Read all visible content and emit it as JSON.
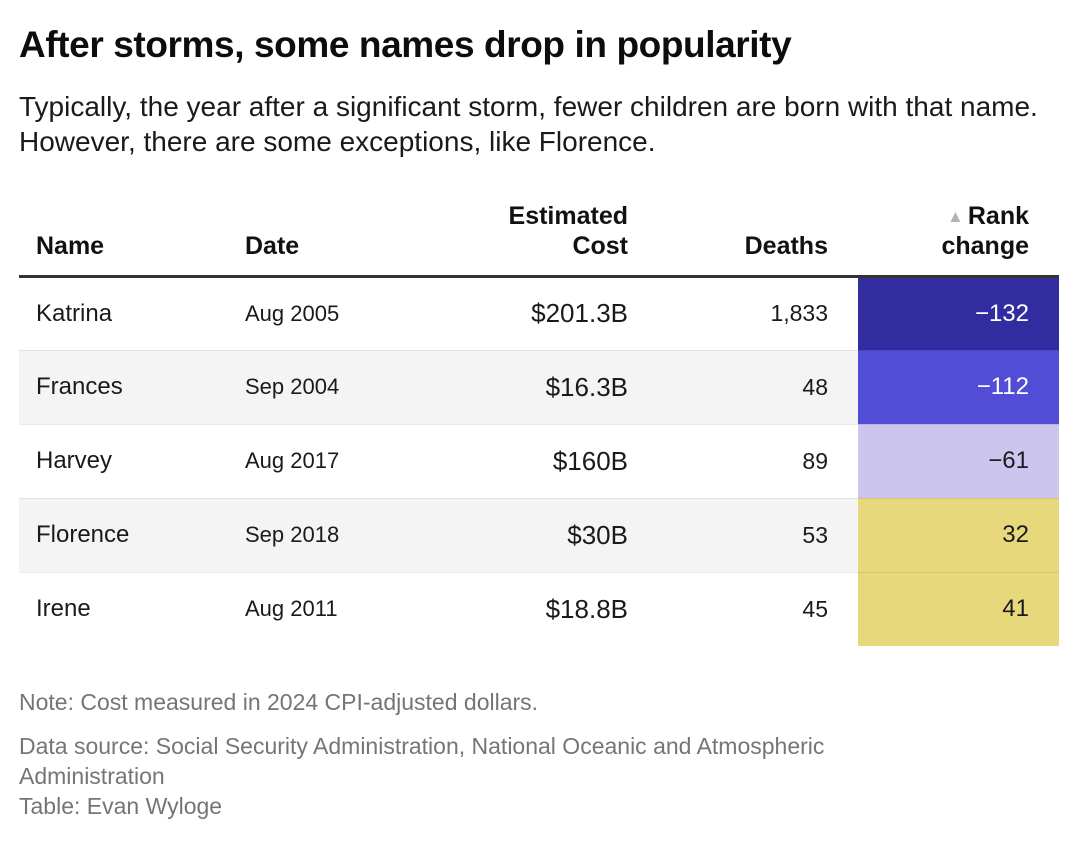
{
  "title": "After storms, some names drop in popularity",
  "subtitle": "Typically, the year after a significant storm, fewer children are born with that name. However, there are some exceptions, like Florence.",
  "table": {
    "columns": [
      {
        "label": "Name",
        "align": "left"
      },
      {
        "label": "Date",
        "align": "left"
      },
      {
        "label": "Estimated Cost",
        "align": "right"
      },
      {
        "label": "Deaths",
        "align": "right"
      },
      {
        "label": "Rank change",
        "align": "right",
        "sort_icon": "▲"
      }
    ],
    "rows": [
      {
        "name": "Katrina",
        "date": "Aug 2005",
        "cost": "$201.3B",
        "deaths": "1,833",
        "rank_change": "−132",
        "rank_bg": "#312da1",
        "rank_text": "#ffffff"
      },
      {
        "name": "Frances",
        "date": "Sep 2004",
        "cost": "$16.3B",
        "deaths": "48",
        "rank_change": "−112",
        "rank_bg": "#524dd7",
        "rank_text": "#ffffff"
      },
      {
        "name": "Harvey",
        "date": "Aug 2017",
        "cost": "$160B",
        "deaths": "89",
        "rank_change": "−61",
        "rank_bg": "#ccc6ef",
        "rank_text": "#1a1a1a"
      },
      {
        "name": "Florence",
        "date": "Sep 2018",
        "cost": "$30B",
        "deaths": "53",
        "rank_change": "32",
        "rank_bg": "#e8d87c",
        "rank_text": "#1a1a1a"
      },
      {
        "name": "Irene",
        "date": "Aug 2011",
        "cost": "$18.8B",
        "deaths": "45",
        "rank_change": "41",
        "rank_bg": "#e8d87c",
        "rank_text": "#1a1a1a"
      }
    ]
  },
  "chart_data": {
    "type": "table",
    "title": "After storms, some names drop in popularity",
    "columns": [
      "Name",
      "Date",
      "Estimated Cost",
      "Deaths",
      "Rank change"
    ],
    "rows": [
      [
        "Katrina",
        "Aug 2005",
        "$201.3B",
        1833,
        -132
      ],
      [
        "Frances",
        "Sep 2004",
        "$16.3B",
        48,
        -112
      ],
      [
        "Harvey",
        "Aug 2017",
        "$160B",
        89,
        -61
      ],
      [
        "Florence",
        "Sep 2018",
        "$30B",
        53,
        32
      ],
      [
        "Irene",
        "Aug 2011",
        "$18.8B",
        45,
        41
      ]
    ],
    "sorted_by": "Rank change, ascending",
    "cell_shading": "Rank change column shaded indigo for negative values (darker = larger drop) and yellow for positive values"
  },
  "footer": {
    "note": "Note: Cost measured in 2024 CPI-adjusted dollars.",
    "source": "Data source: Social Security Administration, National Oceanic and Atmospheric Administration",
    "credit": "Table: Evan Wyloge"
  },
  "colors": {
    "rank_negative_strong": "#312da1",
    "rank_negative_medium": "#524dd7",
    "rank_negative_light": "#ccc6ef",
    "rank_positive": "#e8d87c",
    "header_rule": "#333333",
    "row_stripe": "#f4f4f4",
    "footer_text": "#757575",
    "sort_icon": "#b3b3b3"
  }
}
